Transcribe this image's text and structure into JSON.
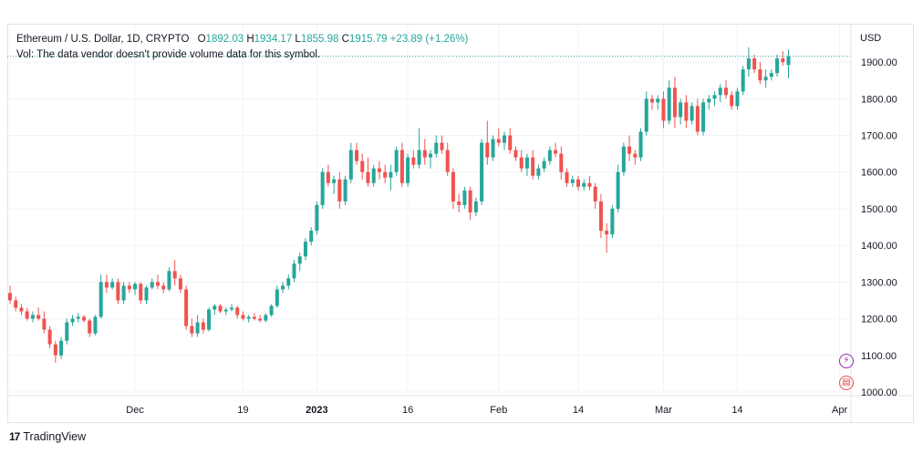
{
  "legend": {
    "symbol": "Ethereum / U.S. Dollar, 1D, CRYPTO",
    "open_label": "O",
    "open": "1892.03",
    "high_label": "H",
    "high": "1934.17",
    "low_label": "L",
    "low": "1855.98",
    "close_label": "C",
    "close": "1915.79",
    "change": "+23.89 (+1.26%)",
    "vol_line": "Vol: The data vendor doesn't provide volume data for this symbol."
  },
  "brand": {
    "name": "TradingView",
    "logo_icon": "tradingview-logo-icon"
  },
  "colors": {
    "up": "#26a69a",
    "down": "#ef5350",
    "grid": "#f0f3fa",
    "axis_text": "#131722"
  },
  "chart_data": {
    "type": "candlestick",
    "currency": "USD",
    "ylim": [
      1000,
      1950
    ],
    "y_ticks": [
      1000,
      1100,
      1200,
      1300,
      1400,
      1500,
      1600,
      1700,
      1800,
      1900
    ],
    "x_ticks": [
      {
        "label": "Dec",
        "i": 22,
        "bold": false
      },
      {
        "label": "19",
        "i": 41,
        "bold": false
      },
      {
        "label": "2023",
        "i": 54,
        "bold": true
      },
      {
        "label": "16",
        "i": 70,
        "bold": false
      },
      {
        "label": "Feb",
        "i": 86,
        "bold": false
      },
      {
        "label": "14",
        "i": 100,
        "bold": false
      },
      {
        "label": "Mar",
        "i": 115,
        "bold": false
      },
      {
        "label": "14",
        "i": 128,
        "bold": false
      },
      {
        "label": "Apr",
        "i": 146,
        "bold": false
      }
    ],
    "ohlc": [
      [
        1270,
        1290,
        1240,
        1250
      ],
      [
        1250,
        1260,
        1220,
        1230
      ],
      [
        1230,
        1240,
        1210,
        1220
      ],
      [
        1220,
        1230,
        1195,
        1200
      ],
      [
        1200,
        1220,
        1190,
        1210
      ],
      [
        1210,
        1230,
        1195,
        1200
      ],
      [
        1200,
        1220,
        1160,
        1170
      ],
      [
        1170,
        1180,
        1120,
        1130
      ],
      [
        1130,
        1140,
        1080,
        1100
      ],
      [
        1100,
        1150,
        1090,
        1140
      ],
      [
        1140,
        1200,
        1130,
        1190
      ],
      [
        1190,
        1210,
        1180,
        1200
      ],
      [
        1200,
        1215,
        1190,
        1205
      ],
      [
        1205,
        1210,
        1190,
        1195
      ],
      [
        1195,
        1200,
        1150,
        1160
      ],
      [
        1160,
        1210,
        1155,
        1205
      ],
      [
        1205,
        1320,
        1200,
        1300
      ],
      [
        1300,
        1320,
        1270,
        1285
      ],
      [
        1285,
        1310,
        1280,
        1300
      ],
      [
        1300,
        1310,
        1240,
        1250
      ],
      [
        1250,
        1300,
        1240,
        1290
      ],
      [
        1290,
        1300,
        1270,
        1280
      ],
      [
        1280,
        1300,
        1265,
        1295
      ],
      [
        1295,
        1300,
        1240,
        1250
      ],
      [
        1250,
        1290,
        1240,
        1285
      ],
      [
        1285,
        1310,
        1280,
        1300
      ],
      [
        1300,
        1320,
        1280,
        1290
      ],
      [
        1290,
        1300,
        1270,
        1280
      ],
      [
        1280,
        1340,
        1275,
        1330
      ],
      [
        1330,
        1360,
        1290,
        1310
      ],
      [
        1310,
        1320,
        1270,
        1280
      ],
      [
        1280,
        1290,
        1170,
        1180
      ],
      [
        1180,
        1200,
        1150,
        1160
      ],
      [
        1160,
        1210,
        1150,
        1190
      ],
      [
        1190,
        1200,
        1160,
        1170
      ],
      [
        1170,
        1230,
        1165,
        1225
      ],
      [
        1225,
        1240,
        1210,
        1235
      ],
      [
        1235,
        1240,
        1215,
        1220
      ],
      [
        1220,
        1230,
        1210,
        1225
      ],
      [
        1225,
        1240,
        1220,
        1230
      ],
      [
        1230,
        1235,
        1200,
        1210
      ],
      [
        1210,
        1220,
        1195,
        1200
      ],
      [
        1200,
        1210,
        1190,
        1205
      ],
      [
        1205,
        1215,
        1195,
        1200
      ],
      [
        1200,
        1210,
        1190,
        1195
      ],
      [
        1195,
        1215,
        1190,
        1210
      ],
      [
        1210,
        1240,
        1205,
        1235
      ],
      [
        1235,
        1290,
        1230,
        1280
      ],
      [
        1280,
        1300,
        1270,
        1290
      ],
      [
        1290,
        1320,
        1280,
        1310
      ],
      [
        1310,
        1360,
        1300,
        1350
      ],
      [
        1350,
        1380,
        1330,
        1370
      ],
      [
        1370,
        1420,
        1360,
        1410
      ],
      [
        1410,
        1450,
        1400,
        1440
      ],
      [
        1440,
        1520,
        1430,
        1510
      ],
      [
        1510,
        1610,
        1500,
        1600
      ],
      [
        1600,
        1620,
        1560,
        1570
      ],
      [
        1570,
        1590,
        1540,
        1580
      ],
      [
        1580,
        1600,
        1500,
        1520
      ],
      [
        1520,
        1590,
        1510,
        1580
      ],
      [
        1580,
        1680,
        1570,
        1660
      ],
      [
        1660,
        1680,
        1620,
        1630
      ],
      [
        1630,
        1650,
        1580,
        1600
      ],
      [
        1600,
        1640,
        1560,
        1570
      ],
      [
        1570,
        1620,
        1560,
        1610
      ],
      [
        1610,
        1630,
        1580,
        1600
      ],
      [
        1600,
        1620,
        1570,
        1585
      ],
      [
        1585,
        1620,
        1550,
        1600
      ],
      [
        1600,
        1670,
        1590,
        1660
      ],
      [
        1660,
        1680,
        1560,
        1570
      ],
      [
        1570,
        1650,
        1560,
        1640
      ],
      [
        1640,
        1660,
        1610,
        1620
      ],
      [
        1620,
        1720,
        1610,
        1660
      ],
      [
        1660,
        1690,
        1620,
        1640
      ],
      [
        1640,
        1660,
        1610,
        1650
      ],
      [
        1650,
        1700,
        1640,
        1680
      ],
      [
        1680,
        1700,
        1650,
        1660
      ],
      [
        1660,
        1680,
        1590,
        1600
      ],
      [
        1600,
        1610,
        1500,
        1520
      ],
      [
        1520,
        1540,
        1490,
        1510
      ],
      [
        1510,
        1560,
        1500,
        1550
      ],
      [
        1550,
        1560,
        1470,
        1490
      ],
      [
        1490,
        1530,
        1480,
        1520
      ],
      [
        1520,
        1690,
        1510,
        1680
      ],
      [
        1680,
        1740,
        1620,
        1640
      ],
      [
        1640,
        1700,
        1630,
        1690
      ],
      [
        1690,
        1720,
        1670,
        1680
      ],
      [
        1680,
        1710,
        1660,
        1700
      ],
      [
        1700,
        1720,
        1650,
        1660
      ],
      [
        1660,
        1670,
        1630,
        1640
      ],
      [
        1640,
        1660,
        1600,
        1610
      ],
      [
        1610,
        1650,
        1590,
        1640
      ],
      [
        1640,
        1660,
        1580,
        1590
      ],
      [
        1590,
        1620,
        1580,
        1610
      ],
      [
        1610,
        1640,
        1600,
        1630
      ],
      [
        1630,
        1670,
        1620,
        1660
      ],
      [
        1660,
        1680,
        1640,
        1650
      ],
      [
        1650,
        1670,
        1580,
        1600
      ],
      [
        1600,
        1610,
        1560,
        1570
      ],
      [
        1570,
        1590,
        1560,
        1580
      ],
      [
        1580,
        1590,
        1550,
        1560
      ],
      [
        1560,
        1580,
        1550,
        1570
      ],
      [
        1570,
        1590,
        1550,
        1560
      ],
      [
        1560,
        1570,
        1500,
        1520
      ],
      [
        1520,
        1540,
        1420,
        1440
      ],
      [
        1440,
        1460,
        1380,
        1430
      ],
      [
        1430,
        1510,
        1420,
        1500
      ],
      [
        1500,
        1620,
        1490,
        1600
      ],
      [
        1600,
        1680,
        1590,
        1670
      ],
      [
        1670,
        1700,
        1630,
        1650
      ],
      [
        1650,
        1660,
        1620,
        1640
      ],
      [
        1640,
        1720,
        1630,
        1710
      ],
      [
        1710,
        1820,
        1700,
        1800
      ],
      [
        1800,
        1810,
        1770,
        1790
      ],
      [
        1790,
        1810,
        1770,
        1800
      ],
      [
        1800,
        1820,
        1720,
        1740
      ],
      [
        1740,
        1850,
        1730,
        1830
      ],
      [
        1830,
        1860,
        1720,
        1750
      ],
      [
        1750,
        1800,
        1730,
        1790
      ],
      [
        1790,
        1810,
        1720,
        1740
      ],
      [
        1740,
        1790,
        1730,
        1780
      ],
      [
        1780,
        1800,
        1700,
        1710
      ],
      [
        1710,
        1800,
        1700,
        1790
      ],
      [
        1790,
        1810,
        1770,
        1800
      ],
      [
        1800,
        1820,
        1780,
        1810
      ],
      [
        1810,
        1840,
        1790,
        1830
      ],
      [
        1830,
        1850,
        1800,
        1810
      ],
      [
        1810,
        1820,
        1770,
        1780
      ],
      [
        1780,
        1830,
        1770,
        1820
      ],
      [
        1820,
        1890,
        1810,
        1880
      ],
      [
        1880,
        1940,
        1860,
        1910
      ],
      [
        1910,
        1920,
        1870,
        1880
      ],
      [
        1880,
        1900,
        1840,
        1850
      ],
      [
        1850,
        1880,
        1830,
        1860
      ],
      [
        1860,
        1880,
        1850,
        1870
      ],
      [
        1870,
        1920,
        1860,
        1910
      ],
      [
        1910,
        1930,
        1890,
        1900
      ],
      [
        1892,
        1934,
        1856,
        1916
      ]
    ],
    "last_price": 1915.79
  }
}
